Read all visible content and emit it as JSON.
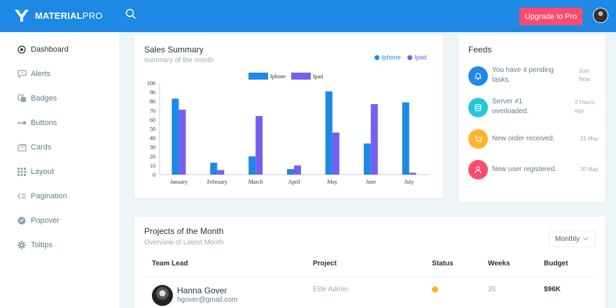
{
  "topbar": {
    "brand_bold": "MATERIAL",
    "brand_light": "PRO",
    "upgrade_label": "Upgrade to Pro"
  },
  "sidebar": {
    "items": [
      {
        "label": "Dashboard",
        "icon": "dashboard-icon",
        "active": true
      },
      {
        "label": "Alerts",
        "icon": "alert-icon",
        "active": false
      },
      {
        "label": "Badges",
        "icon": "badge-icon",
        "active": false
      },
      {
        "label": "Buttons",
        "icon": "button-icon",
        "active": false
      },
      {
        "label": "Cards",
        "icon": "card-icon",
        "active": false
      },
      {
        "label": "Layout",
        "icon": "layout-icon",
        "active": false
      },
      {
        "label": "Pagination",
        "icon": "pagination-icon",
        "active": false
      },
      {
        "label": "Popover",
        "icon": "popover-icon",
        "active": false
      },
      {
        "label": "Toltips",
        "icon": "tooltip-icon",
        "active": false
      }
    ]
  },
  "sales": {
    "title": "Sales Summary",
    "subtitle": "summary of the month",
    "legend_iphone": "Iphone",
    "legend_ipad": "Ipad"
  },
  "chart_data": {
    "type": "bar",
    "title": "",
    "xlabel": "",
    "ylabel": "",
    "ylim": [
      0,
      100
    ],
    "yticks": [
      0,
      10,
      20,
      30,
      40,
      50,
      60,
      70,
      80,
      90,
      100
    ],
    "categories": [
      "January",
      "February",
      "March",
      "April",
      "May",
      "June",
      "July"
    ],
    "series": [
      {
        "name": "Iphone",
        "color": "#1e88e5",
        "values": [
          83,
          13,
          20,
          6,
          91,
          34,
          79
        ]
      },
      {
        "name": "Ipad",
        "color": "#7460ee",
        "values": [
          71,
          5,
          64,
          10,
          46,
          77,
          2
        ]
      }
    ]
  },
  "feeds": {
    "title": "Feeds",
    "items": [
      {
        "line1": "You have 4 pending",
        "line2": "tasks.",
        "time1": "Just",
        "time2": "Now",
        "color": "#1e88e5",
        "icon": "bell-icon"
      },
      {
        "line1": "Server #1",
        "line2": "overloaded.",
        "time1": "2 Hours",
        "time2": "ago",
        "color": "#26c6da",
        "icon": "server-icon"
      },
      {
        "line1": "New order received.",
        "line2": "",
        "time1": "31 May",
        "time2": "",
        "color": "#ffb22b",
        "icon": "cart-icon"
      },
      {
        "line1": "New user registered.",
        "line2": "",
        "time1": "30 May",
        "time2": "",
        "color": "#fc4b6c",
        "icon": "user-icon"
      }
    ]
  },
  "projects": {
    "title": "Projects of the Month",
    "subtitle": "Overview of Latest Month",
    "select_value": "Monthly",
    "headers": [
      "Team Lead",
      "Project",
      "Status",
      "Weeks",
      "Budget"
    ],
    "rows": [
      {
        "name": "Hanna Gover",
        "email": "hgover@gmail.com",
        "project": "Elite Admin",
        "status_color": "#ffb22b",
        "weeks": "35",
        "budget": "$96K"
      }
    ]
  }
}
